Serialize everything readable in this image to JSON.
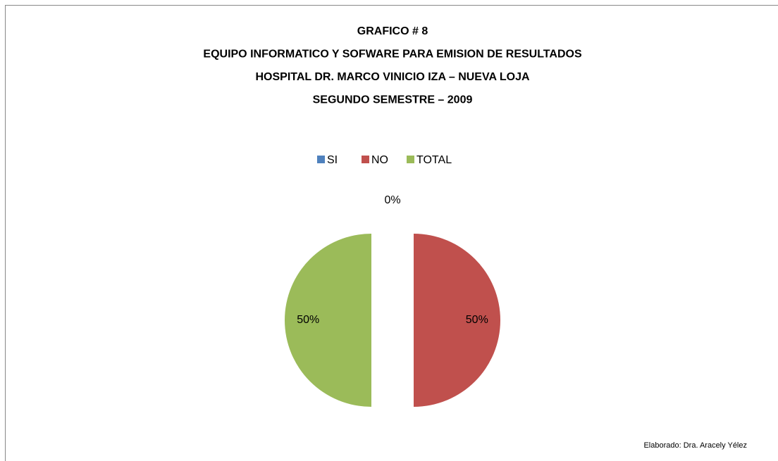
{
  "chart_data": {
    "type": "pie",
    "title": [
      "GRAFICO # 8",
      "EQUIPO INFORMATICO Y SOFWARE PARA EMISION DE RESULTADOS",
      "HOSPITAL DR. MARCO VINICIO IZA – NUEVA LOJA",
      "SEGUNDO SEMESTRE – 2009"
    ],
    "categories": [
      "SI",
      "NO",
      "TOTAL"
    ],
    "values": [
      0,
      50,
      50
    ],
    "value_labels": [
      "0%",
      "50%",
      "50%"
    ],
    "colors": [
      "#4f81bd",
      "#c0504d",
      "#9bbb59"
    ],
    "legend": "top",
    "annotation": "Elaborado: Dra. Aracely Yélez"
  }
}
